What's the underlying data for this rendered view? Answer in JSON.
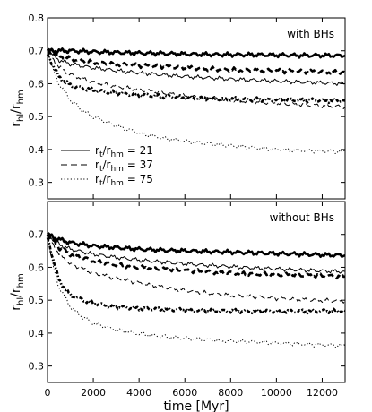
{
  "chart_data": [
    {
      "type": "line",
      "title": "",
      "annotation": "with BHs",
      "xlabel": "",
      "ylabel_main": "r",
      "ylabel_sub1": "hl",
      "ylabel_mid": "/r",
      "ylabel_sub2": "hm",
      "xlim": [
        0,
        13000
      ],
      "ylim": [
        0.25,
        0.8
      ],
      "yticks": [
        0.3,
        0.4,
        0.5,
        0.6,
        0.7,
        0.8
      ],
      "ytick_labels": [
        "0.3",
        "0.4",
        "0.5",
        "0.6",
        "0.7",
        "0.8"
      ],
      "legend": {
        "position": "middle-left",
        "entries": [
          {
            "style": "solid",
            "pre": "r",
            "sub1": "t",
            "mid": "/r",
            "sub2": "hm",
            "post": " = 21"
          },
          {
            "style": "dashed",
            "pre": "r",
            "sub1": "t",
            "mid": "/r",
            "sub2": "hm",
            "post": " = 37"
          },
          {
            "style": "dotted",
            "pre": "r",
            "sub1": "t",
            "mid": "/r",
            "sub2": "hm",
            "post": " = 75"
          }
        ]
      },
      "series": [
        {
          "style": "solid",
          "weight": "thick",
          "x": [
            0,
            500,
            1000,
            2000,
            3000,
            4000,
            5000,
            6000,
            7000,
            8000,
            9000,
            10000,
            11000,
            12000,
            13000
          ],
          "y": [
            0.7,
            0.7,
            0.7,
            0.697,
            0.695,
            0.693,
            0.692,
            0.69,
            0.689,
            0.688,
            0.688,
            0.687,
            0.686,
            0.686,
            0.685
          ]
        },
        {
          "style": "dashed",
          "weight": "thick",
          "x": [
            0,
            500,
            1000,
            2000,
            3000,
            4000,
            5000,
            6000,
            7000,
            8000,
            9000,
            10000,
            11000,
            12000,
            13000
          ],
          "y": [
            0.7,
            0.685,
            0.675,
            0.665,
            0.66,
            0.655,
            0.652,
            0.648,
            0.645,
            0.643,
            0.641,
            0.639,
            0.637,
            0.636,
            0.635
          ]
        },
        {
          "style": "solid",
          "weight": "thin",
          "x": [
            0,
            500,
            1000,
            2000,
            3000,
            4000,
            5000,
            6000,
            7000,
            8000,
            9000,
            10000,
            11000,
            12000,
            13000
          ],
          "y": [
            0.7,
            0.672,
            0.66,
            0.648,
            0.64,
            0.633,
            0.627,
            0.622,
            0.618,
            0.614,
            0.611,
            0.608,
            0.605,
            0.603,
            0.6
          ]
        },
        {
          "style": "dashed",
          "weight": "thin",
          "x": [
            0,
            500,
            1000,
            2000,
            3000,
            4000,
            5000,
            6000,
            7000,
            8000,
            9000,
            10000,
            11000,
            12000,
            13000
          ],
          "y": [
            0.7,
            0.65,
            0.628,
            0.605,
            0.592,
            0.582,
            0.572,
            0.563,
            0.556,
            0.55,
            0.545,
            0.54,
            0.536,
            0.533,
            0.53
          ]
        },
        {
          "style": "dashdot",
          "weight": "thick",
          "x": [
            0,
            500,
            1000,
            2000,
            3000,
            4000,
            5000,
            6000,
            7000,
            8000,
            9000,
            10000,
            11000,
            12000,
            13000
          ],
          "y": [
            0.69,
            0.62,
            0.595,
            0.58,
            0.572,
            0.566,
            0.562,
            0.558,
            0.555,
            0.553,
            0.552,
            0.551,
            0.55,
            0.549,
            0.548
          ]
        },
        {
          "style": "dotted",
          "weight": "thin",
          "x": [
            0,
            250,
            500,
            1000,
            1500,
            2000,
            3000,
            4000,
            5000,
            6000,
            7000,
            8000,
            9000,
            10000,
            11000,
            12000,
            13000
          ],
          "y": [
            0.7,
            0.64,
            0.6,
            0.55,
            0.52,
            0.5,
            0.472,
            0.45,
            0.435,
            0.425,
            0.418,
            0.412,
            0.405,
            0.4,
            0.397,
            0.395,
            0.393
          ]
        }
      ]
    },
    {
      "type": "line",
      "title": "",
      "annotation": "without BHs",
      "xlabel": "time [Myr]",
      "ylabel_main": "r",
      "ylabel_sub1": "hl",
      "ylabel_mid": "/r",
      "ylabel_sub2": "hm",
      "xlim": [
        0,
        13000
      ],
      "ylim": [
        0.25,
        0.8
      ],
      "yticks": [
        0.3,
        0.4,
        0.5,
        0.6,
        0.7
      ],
      "ytick_labels": [
        "0.3",
        "0.4",
        "0.5",
        "0.6",
        "0.7"
      ],
      "xticks": [
        0,
        2000,
        4000,
        6000,
        8000,
        10000,
        12000
      ],
      "xtick_labels": [
        "0",
        "2000",
        "4000",
        "6000",
        "8000",
        "10000",
        "12000"
      ],
      "series": [
        {
          "style": "solid",
          "weight": "thick",
          "x": [
            0,
            500,
            1000,
            2000,
            3000,
            4000,
            5000,
            6000,
            7000,
            8000,
            9000,
            10000,
            11000,
            12000,
            13000
          ],
          "y": [
            0.7,
            0.685,
            0.675,
            0.665,
            0.66,
            0.655,
            0.652,
            0.65,
            0.648,
            0.646,
            0.644,
            0.642,
            0.64,
            0.638,
            0.636
          ]
        },
        {
          "style": "solid",
          "weight": "thin",
          "x": [
            0,
            500,
            1000,
            2000,
            3000,
            4000,
            5000,
            6000,
            7000,
            8000,
            9000,
            10000,
            11000,
            12000,
            13000
          ],
          "y": [
            0.7,
            0.67,
            0.655,
            0.64,
            0.63,
            0.622,
            0.616,
            0.611,
            0.606,
            0.602,
            0.598,
            0.595,
            0.592,
            0.589,
            0.587
          ]
        },
        {
          "style": "dashed",
          "weight": "thick",
          "x": [
            0,
            500,
            1000,
            2000,
            3000,
            4000,
            5000,
            6000,
            7000,
            8000,
            9000,
            10000,
            11000,
            12000,
            13000
          ],
          "y": [
            0.7,
            0.66,
            0.64,
            0.62,
            0.608,
            0.6,
            0.595,
            0.59,
            0.586,
            0.583,
            0.58,
            0.578,
            0.576,
            0.574,
            0.572
          ]
        },
        {
          "style": "dashed",
          "weight": "thin",
          "x": [
            0,
            500,
            1000,
            2000,
            3000,
            4000,
            5000,
            6000,
            7000,
            8000,
            9000,
            10000,
            11000,
            12000,
            13000
          ],
          "y": [
            0.7,
            0.64,
            0.61,
            0.582,
            0.566,
            0.552,
            0.54,
            0.53,
            0.522,
            0.515,
            0.51,
            0.505,
            0.502,
            0.5,
            0.498
          ]
        },
        {
          "style": "dashdot",
          "weight": "thick",
          "x": [
            0,
            500,
            1000,
            2000,
            3000,
            4000,
            5000,
            6000,
            7000,
            8000,
            9000,
            10000,
            11000,
            12000,
            13000
          ],
          "y": [
            0.69,
            0.56,
            0.515,
            0.49,
            0.48,
            0.475,
            0.472,
            0.47,
            0.468,
            0.467,
            0.466,
            0.466,
            0.466,
            0.467,
            0.468
          ]
        },
        {
          "style": "dotted",
          "weight": "thin",
          "x": [
            0,
            250,
            500,
            1000,
            1500,
            2000,
            3000,
            4000,
            5000,
            6000,
            7000,
            8000,
            9000,
            10000,
            11000,
            12000,
            13000
          ],
          "y": [
            0.7,
            0.6,
            0.54,
            0.48,
            0.45,
            0.43,
            0.41,
            0.398,
            0.39,
            0.384,
            0.38,
            0.376,
            0.373,
            0.37,
            0.367,
            0.364,
            0.362
          ]
        }
      ]
    }
  ]
}
